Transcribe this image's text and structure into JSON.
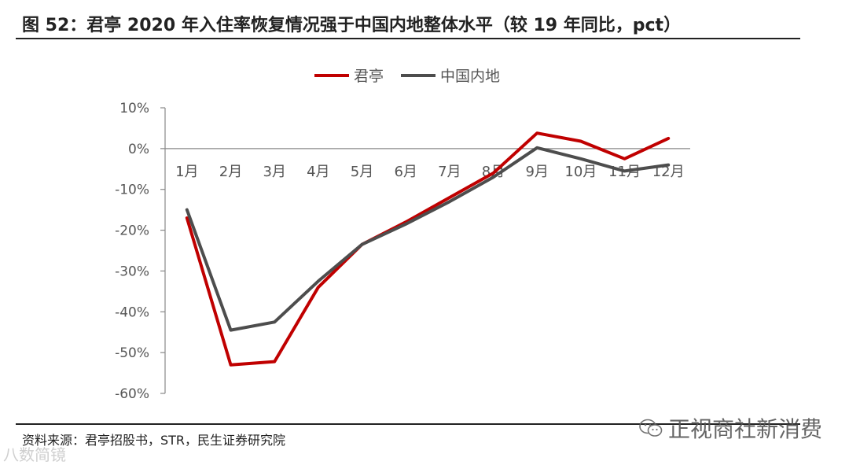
{
  "figure": {
    "title": "图 52：君亭 2020 年入住率恢复情况强于中国内地整体水平（较 19 年同比，pct）",
    "source": "资料来源：君亭招股书，STR，民生证券研究院",
    "watermark": "正视商社新消费",
    "watermark_icon": "wechat-icon",
    "watermark_left": "八数简镜"
  },
  "chart_data": {
    "type": "line",
    "title": "",
    "xlabel": "",
    "ylabel": "",
    "categories": [
      "1月",
      "2月",
      "3月",
      "4月",
      "5月",
      "6月",
      "7月",
      "8月",
      "9月",
      "10月",
      "11月",
      "12月"
    ],
    "series": [
      {
        "name": "君亭",
        "color": "#c00000",
        "values": [
          -17,
          -53,
          -52.2,
          -34,
          -23.5,
          -18,
          -12,
          -6,
          3.8,
          1.8,
          -2.5,
          2.5
        ]
      },
      {
        "name": "中国内地",
        "color": "#4d4d4d",
        "values": [
          -15,
          -44.5,
          -42.5,
          -32.5,
          -23.5,
          -18.5,
          -13,
          -7,
          0.2,
          -2.5,
          -5.5,
          -4
        ]
      }
    ],
    "ylim": [
      -60,
      10
    ],
    "yticks": [
      10,
      0,
      -10,
      -20,
      -30,
      -40,
      -50,
      -60
    ],
    "ytick_labels": [
      "10%",
      "0%",
      "-10%",
      "-20%",
      "-30%",
      "-40%",
      "-50%",
      "-60%"
    ],
    "legend_position": "top-center",
    "grid": false
  }
}
